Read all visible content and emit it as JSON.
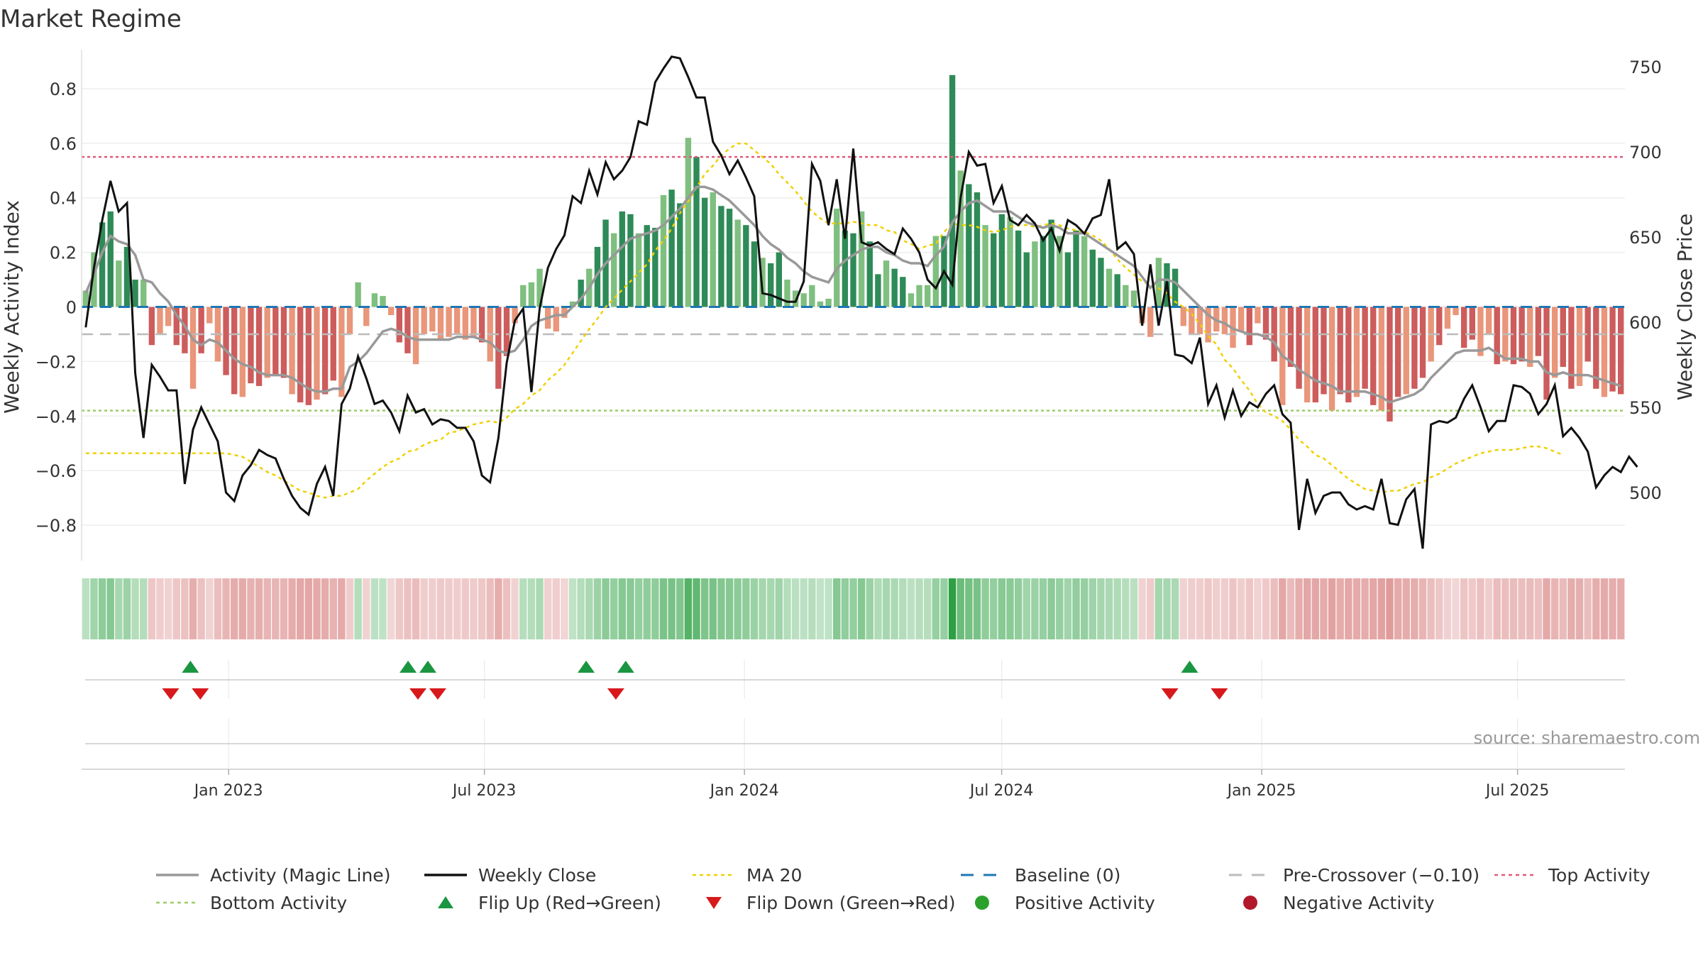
{
  "title": "Market Regime",
  "source": "source: sharemaestro.com",
  "colors": {
    "pos_dark": "#2e8b57",
    "pos_light": "#7fbf7f",
    "neg_dark": "#cd5c5c",
    "neg_light": "#e9967a",
    "magic": "#999999",
    "close": "#111111",
    "ma20": "#f0d000",
    "baseline": "#1f77b4",
    "pre": "#bbbbbb",
    "top": "#e05a7a",
    "bottom": "#9ccc65",
    "flip_up": "#1a9641",
    "flip_down": "#d7191c",
    "pos_dot": "#2ca02c",
    "neg_dot": "#b2182b"
  },
  "chart_data": {
    "type": "bar",
    "title": "Market Regime",
    "ylabel_left": "Weekly Activity Index",
    "ylabel_right": "Weekly Close Price",
    "yticks_left": [
      "0.8",
      "0.6",
      "0.4",
      "0.2",
      "0",
      "−0.2",
      "−0.4",
      "−0.6",
      "−0.8"
    ],
    "ytick_values_left": [
      0.8,
      0.6,
      0.4,
      0.2,
      0,
      -0.2,
      -0.4,
      -0.6,
      -0.8
    ],
    "ylim_left": [
      -0.93,
      0.93
    ],
    "yticks_right": [
      "750",
      "700",
      "650",
      "600",
      "550",
      "500"
    ],
    "ytick_values_right": [
      750,
      700,
      650,
      600,
      550,
      500
    ],
    "ylim_right": [
      460,
      758
    ],
    "x_start": "2022-09-19",
    "x_end": "2025-09-15",
    "xticks": [
      {
        "label": "Jan 2023",
        "date": "2023-01-01"
      },
      {
        "label": "Jul 2023",
        "date": "2023-07-01"
      },
      {
        "label": "Jan 2024",
        "date": "2024-01-01"
      },
      {
        "label": "Jul 2024",
        "date": "2024-07-01"
      },
      {
        "label": "Jan 2025",
        "date": "2025-01-01"
      },
      {
        "label": "Jul 2025",
        "date": "2025-07-01"
      }
    ],
    "reference_lines": {
      "baseline": 0,
      "pre_crossover": -0.1,
      "top_activity": 0.55,
      "bottom_activity": -0.38
    },
    "activity": [
      0.06,
      0.2,
      0.31,
      0.35,
      0.17,
      0.22,
      0.1,
      0.1,
      -0.14,
      -0.1,
      -0.07,
      -0.14,
      -0.17,
      -0.3,
      -0.17,
      -0.06,
      -0.2,
      -0.25,
      -0.32,
      -0.33,
      -0.28,
      -0.29,
      -0.26,
      -0.25,
      -0.26,
      -0.32,
      -0.35,
      -0.36,
      -0.34,
      -0.32,
      -0.27,
      -0.33,
      -0.1,
      0.09,
      -0.07,
      0.05,
      0.04,
      -0.03,
      -0.13,
      -0.17,
      -0.21,
      -0.1,
      -0.09,
      -0.12,
      -0.11,
      -0.1,
      -0.12,
      -0.11,
      -0.13,
      -0.2,
      -0.3,
      -0.18,
      -0.06,
      0.08,
      0.09,
      0.14,
      -0.08,
      -0.09,
      -0.04,
      0.02,
      0.1,
      0.14,
      0.22,
      0.32,
      0.27,
      0.35,
      0.34,
      0.27,
      0.3,
      0.29,
      0.41,
      0.43,
      0.38,
      0.62,
      0.55,
      0.4,
      0.42,
      0.37,
      0.36,
      0.32,
      0.3,
      0.24,
      0.18,
      0.16,
      0.2,
      0.1,
      0.06,
      0.05,
      0.08,
      0.02,
      0.03,
      0.36,
      0.28,
      0.27,
      0.35,
      0.24,
      0.12,
      0.17,
      0.14,
      0.11,
      0.05,
      0.08,
      0.08,
      0.26,
      0.26,
      0.85,
      0.5,
      0.45,
      0.42,
      0.3,
      0.27,
      0.34,
      0.33,
      0.28,
      0.2,
      0.24,
      0.26,
      0.32,
      0.26,
      0.2,
      0.28,
      0.26,
      0.21,
      0.18,
      0.14,
      0.12,
      0.08,
      0.06,
      -0.06,
      -0.11,
      0.18,
      0.16,
      0.14,
      -0.07,
      -0.1,
      -0.1,
      -0.13,
      -0.09,
      -0.1,
      -0.15,
      -0.09,
      -0.14,
      -0.06,
      -0.12,
      -0.2,
      -0.36,
      -0.22,
      -0.3,
      -0.35,
      -0.35,
      -0.32,
      -0.38,
      -0.32,
      -0.35,
      -0.33,
      -0.3,
      -0.36,
      -0.38,
      -0.42,
      -0.33,
      -0.32,
      -0.3,
      -0.26,
      -0.2,
      -0.14,
      -0.08,
      -0.03,
      -0.15,
      -0.12,
      -0.18,
      -0.1,
      -0.21,
      -0.2,
      -0.21,
      -0.2,
      -0.22,
      -0.18,
      -0.34,
      -0.26,
      -0.22,
      -0.3,
      -0.29,
      -0.2,
      -0.3,
      -0.33,
      -0.31,
      -0.32
    ],
    "magic_line": [
      0.05,
      0.12,
      0.2,
      0.26,
      0.24,
      0.23,
      0.19,
      0.1,
      0.09,
      0.05,
      0.02,
      -0.03,
      -0.07,
      -0.12,
      -0.14,
      -0.12,
      -0.13,
      -0.16,
      -0.19,
      -0.21,
      -0.22,
      -0.24,
      -0.25,
      -0.25,
      -0.25,
      -0.26,
      -0.28,
      -0.3,
      -0.31,
      -0.31,
      -0.3,
      -0.3,
      -0.22,
      -0.2,
      -0.17,
      -0.13,
      -0.09,
      -0.08,
      -0.09,
      -0.11,
      -0.12,
      -0.12,
      -0.12,
      -0.12,
      -0.12,
      -0.11,
      -0.11,
      -0.11,
      -0.12,
      -0.13,
      -0.16,
      -0.17,
      -0.16,
      -0.12,
      -0.07,
      -0.05,
      -0.04,
      -0.03,
      -0.03,
      0.0,
      0.03,
      0.07,
      0.12,
      0.16,
      0.19,
      0.22,
      0.25,
      0.26,
      0.27,
      0.28,
      0.3,
      0.33,
      0.36,
      0.4,
      0.44,
      0.44,
      0.43,
      0.41,
      0.39,
      0.36,
      0.33,
      0.3,
      0.26,
      0.23,
      0.21,
      0.18,
      0.16,
      0.13,
      0.11,
      0.1,
      0.09,
      0.14,
      0.17,
      0.19,
      0.21,
      0.22,
      0.22,
      0.2,
      0.19,
      0.17,
      0.16,
      0.16,
      0.15,
      0.19,
      0.22,
      0.31,
      0.35,
      0.38,
      0.39,
      0.37,
      0.35,
      0.35,
      0.35,
      0.33,
      0.31,
      0.3,
      0.29,
      0.3,
      0.29,
      0.27,
      0.27,
      0.27,
      0.25,
      0.23,
      0.21,
      0.19,
      0.17,
      0.15,
      0.11,
      0.07,
      0.1,
      0.1,
      0.09,
      0.06,
      0.03,
      0.0,
      -0.03,
      -0.05,
      -0.06,
      -0.08,
      -0.09,
      -0.1,
      -0.1,
      -0.11,
      -0.13,
      -0.18,
      -0.2,
      -0.23,
      -0.25,
      -0.27,
      -0.28,
      -0.29,
      -0.31,
      -0.31,
      -0.31,
      -0.31,
      -0.32,
      -0.33,
      -0.35,
      -0.34,
      -0.33,
      -0.32,
      -0.3,
      -0.26,
      -0.23,
      -0.2,
      -0.17,
      -0.16,
      -0.16,
      -0.16,
      -0.15,
      -0.17,
      -0.19,
      -0.19,
      -0.19,
      -0.2,
      -0.2,
      -0.24,
      -0.25,
      -0.24,
      -0.25,
      -0.25,
      -0.25,
      -0.26,
      -0.27,
      -0.28,
      -0.29
    ],
    "close": [
      597,
      632,
      660,
      683,
      665,
      670,
      570,
      532,
      575,
      568,
      560,
      560,
      505,
      537,
      550,
      540,
      530,
      500,
      495,
      510,
      516,
      525,
      522,
      520,
      508,
      498,
      491,
      487,
      505,
      515,
      498,
      552,
      561,
      580,
      567,
      552,
      554,
      547,
      536,
      557,
      547,
      549,
      540,
      543,
      542,
      538,
      538,
      530,
      510,
      506,
      532,
      576,
      601,
      608,
      559,
      608,
      632,
      643,
      651,
      674,
      670,
      689,
      675,
      694,
      684,
      689,
      697,
      718,
      716,
      741,
      749,
      756,
      755,
      744,
      732,
      732,
      706,
      698,
      687,
      695,
      685,
      674,
      617,
      616,
      614,
      612,
      612,
      624,
      693,
      683,
      657,
      684,
      649,
      702,
      647,
      645,
      647,
      643,
      640,
      655,
      649,
      641,
      625,
      620,
      630,
      622,
      673,
      700,
      692,
      693,
      670,
      680,
      660,
      657,
      663,
      658,
      648,
      655,
      642,
      660,
      657,
      652,
      661,
      663,
      684,
      643,
      647,
      640,
      598,
      634,
      598,
      624,
      581,
      580,
      576,
      591,
      552,
      563,
      544,
      560,
      545,
      553,
      550,
      558,
      563,
      546,
      541,
      478,
      508,
      488,
      498,
      500,
      500,
      493,
      490,
      492,
      490,
      508,
      482,
      481,
      496,
      502,
      467,
      540,
      542,
      541,
      544,
      555,
      563,
      550,
      536,
      542,
      542,
      563,
      562,
      558,
      546,
      552,
      563,
      533,
      538,
      532,
      524,
      503,
      510,
      515,
      512,
      521,
      515
    ],
    "ma20": [
      523,
      523,
      523,
      523,
      523,
      523,
      523,
      523,
      523,
      523,
      523,
      523,
      523,
      523,
      523,
      523,
      523,
      523,
      522,
      521,
      518,
      515,
      512,
      510,
      507,
      504,
      501,
      500,
      498,
      497,
      498,
      498,
      500,
      502,
      507,
      511,
      515,
      518,
      520,
      524,
      525,
      528,
      530,
      531,
      535,
      536,
      538,
      540,
      541,
      542,
      541,
      544,
      549,
      552,
      557,
      560,
      566,
      570,
      575,
      582,
      589,
      596,
      602,
      609,
      614,
      619,
      624,
      629,
      634,
      642,
      648,
      655,
      664,
      671,
      679,
      687,
      692,
      698,
      702,
      705,
      705,
      701,
      697,
      693,
      687,
      682,
      677,
      671,
      665,
      661,
      658,
      658,
      658,
      659,
      658,
      657,
      657,
      654,
      653,
      648,
      646,
      643,
      645,
      646,
      653,
      658,
      657,
      657,
      656,
      654,
      653,
      654,
      656,
      657,
      657,
      656,
      657,
      658,
      657,
      655,
      654,
      653,
      651,
      648,
      643,
      637,
      632,
      628,
      624,
      622,
      620,
      617,
      612,
      609,
      605,
      599,
      592,
      587,
      578,
      573,
      566,
      560,
      552,
      547,
      545,
      542,
      537,
      531,
      527,
      522,
      520,
      516,
      512,
      508,
      505,
      502,
      501,
      500,
      501,
      501,
      503,
      505,
      506,
      509,
      511,
      514,
      517,
      519,
      521,
      523,
      524,
      525,
      525,
      525,
      526,
      527,
      527,
      526,
      524,
      522
    ]
  },
  "strip": {
    "label": "activity color strip"
  },
  "flips": {
    "up_dates": [
      "2022-12-05",
      "2023-05-08",
      "2023-05-22",
      "2023-09-11",
      "2023-10-09",
      "2024-11-11"
    ],
    "down_dates": [
      "2022-11-21",
      "2022-12-12",
      "2023-05-15",
      "2023-05-29",
      "2023-10-02",
      "2024-10-28",
      "2024-12-02"
    ]
  },
  "legend": [
    {
      "key": "magic",
      "label": "Activity (Magic Line)",
      "style": "line"
    },
    {
      "key": "close",
      "label": "Weekly Close",
      "style": "line"
    },
    {
      "key": "ma20",
      "label": "MA 20",
      "style": "dotted"
    },
    {
      "key": "baseline",
      "label": "Baseline (0)",
      "style": "dashed"
    },
    {
      "key": "pre",
      "label": "Pre-Crossover (−0.10)",
      "style": "dashed"
    },
    {
      "key": "top",
      "label": "Top Activity",
      "style": "dotted"
    },
    {
      "key": "bottom",
      "label": "Bottom Activity",
      "style": "dotted"
    },
    {
      "key": "flip_up",
      "label": "Flip Up (Red→Green)",
      "style": "tri-up"
    },
    {
      "key": "flip_down",
      "label": "Flip Down (Green→Red)",
      "style": "tri-down"
    },
    {
      "key": "pos_dot",
      "label": "Positive Activity",
      "style": "dot"
    },
    {
      "key": "neg_dot",
      "label": "Negative Activity",
      "style": "dot"
    }
  ]
}
